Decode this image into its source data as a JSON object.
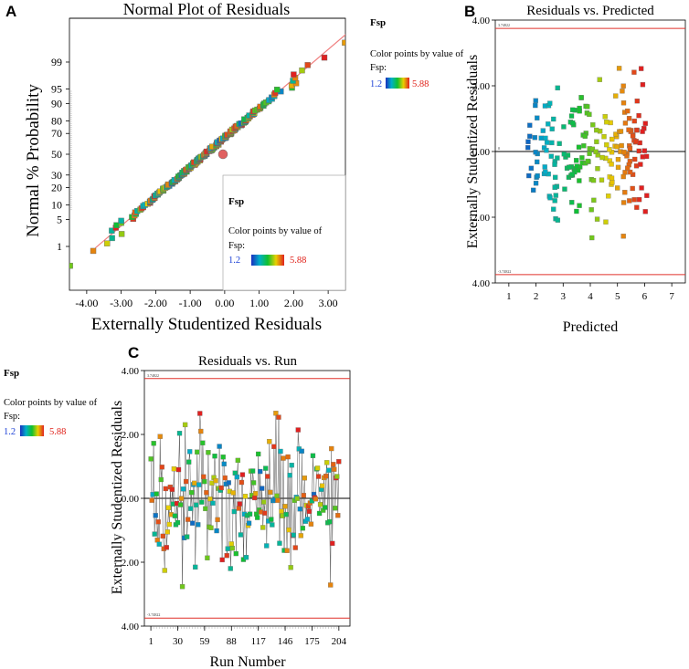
{
  "panels": {
    "a": {
      "letter": "A",
      "title": "Normal Plot of Residuals",
      "xlabel": "Externally Studentized Residuals",
      "ylabel": "Normal % Probability"
    },
    "b": {
      "letter": "B",
      "title": "Residuals vs. Predicted",
      "xlabel": "Predicted",
      "ylabel": "Externally Studentized Residuals",
      "upper_limit_label": "3.74822",
      "lower_limit_label": "-3.74822",
      "zero_label": "0"
    },
    "c": {
      "letter": "C",
      "title": "Residuals vs. Run",
      "xlabel": "Run Number",
      "ylabel": "Externally Studentized Residuals",
      "upper_limit_label": "3.74822",
      "lower_limit_label": "-3.74822"
    }
  },
  "legend": {
    "title": "Fsp",
    "caption_line1": "Color points by value of",
    "caption_line2": "Fsp:",
    "min_label": "1.2",
    "max_label": "5.88"
  },
  "colors": {
    "limit_line": "#e0302a",
    "ref_line": "#f08080",
    "low": "#1a2fbf",
    "high": "#e02020"
  },
  "chart_data": [
    {
      "type": "scatter",
      "title": "Normal Plot of Residuals",
      "xlabel": "Externally Studentized Residuals",
      "ylabel": "Normal % Probability",
      "x_ticks": [
        "-4.00",
        "-3.00",
        "-2.00",
        "-1.00",
        "0.00",
        "1.00",
        "2.00",
        "3.00"
      ],
      "y_ticks": [
        "1",
        "5",
        "10",
        "20",
        "30",
        "50",
        "70",
        "80",
        "90",
        "95",
        "99"
      ],
      "xlim": [
        -4.5,
        3.5
      ],
      "reference_line": {
        "x": [
          -3.75,
          3.6
        ],
        "prob": [
          0.009,
          0.999
        ]
      },
      "note": "approximately 205 points lying along the reference line, colored by Fsp"
    },
    {
      "type": "scatter",
      "title": "Residuals vs. Predicted",
      "xlabel": "Predicted",
      "ylabel": "Externally Studentized Residuals",
      "x_ticks": [
        "1",
        "2",
        "3",
        "4",
        "5",
        "6",
        "7"
      ],
      "y_ticks": [
        "4.00",
        "2.00",
        "0.00",
        "2.00",
        "4.00"
      ],
      "xlim": [
        0.5,
        7.5
      ],
      "ylim": [
        -4.0,
        4.0
      ],
      "limits": [
        3.74822,
        -3.74822
      ],
      "note": "approximately 205 points, predicted mostly 1.7-6.1, residuals mostly -3.4 to 2.7"
    },
    {
      "type": "line",
      "title": "Residuals vs. Run",
      "xlabel": "Run Number",
      "ylabel": "Externally Studentized Residuals",
      "x_ticks": [
        "1",
        "30",
        "59",
        "88",
        "117",
        "146",
        "175",
        "204"
      ],
      "y_ticks": [
        "4.00",
        "2.00",
        "0.00",
        "2.00",
        "4.00"
      ],
      "xlim": [
        -6,
        216
      ],
      "ylim": [
        -4.0,
        4.0
      ],
      "limits": [
        3.74822,
        -3.74822
      ],
      "note": "204 runs, residuals connected in run order, colored by Fsp"
    }
  ]
}
